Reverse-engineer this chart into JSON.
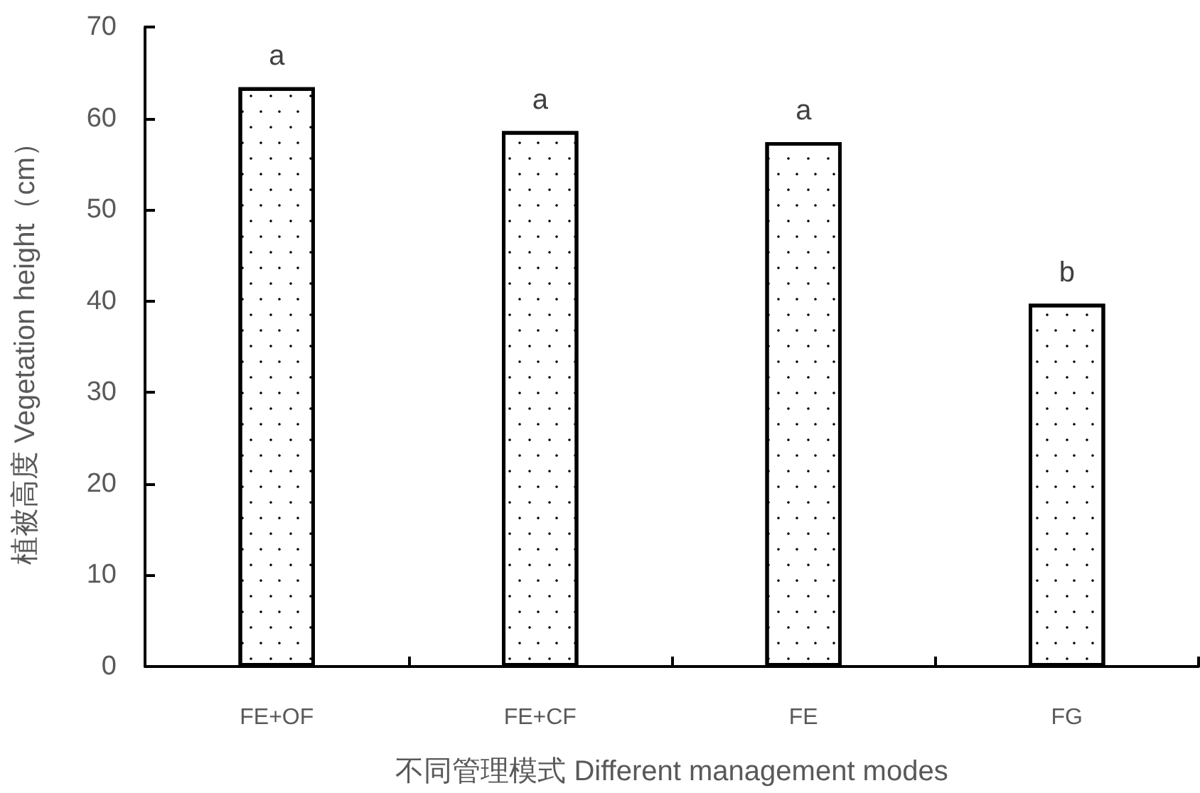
{
  "chart_data": {
    "type": "bar",
    "xlabel": "不同管理模式 Different management modes",
    "ylabel": "植被高度 Vegetation height（cm）",
    "categories": [
      "FE+OF",
      "FE+CF",
      "FE",
      "FG"
    ],
    "values": [
      63.4,
      58.6,
      57.4,
      39.7
    ],
    "color": "#ffffff",
    "value_labels": [
      "a",
      "a",
      "a",
      "b"
    ],
    "ylim": [
      0,
      70
    ],
    "yticks": [
      0,
      10,
      20,
      30,
      40,
      50,
      60,
      70
    ],
    "grid": false
  }
}
